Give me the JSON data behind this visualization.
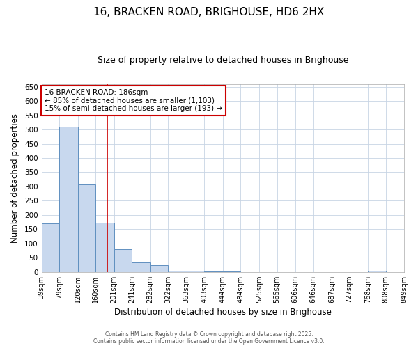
{
  "title1": "16, BRACKEN ROAD, BRIGHOUSE, HD6 2HX",
  "title2": "Size of property relative to detached houses in Brighouse",
  "xlabel": "Distribution of detached houses by size in Brighouse",
  "ylabel": "Number of detached properties",
  "bar_values": [
    170,
    510,
    307,
    173,
    81,
    33,
    23,
    5,
    5,
    2,
    2,
    0,
    0,
    0,
    0,
    0,
    0,
    0,
    5,
    0
  ],
  "bin_edges": [
    39,
    79,
    120,
    160,
    201,
    241,
    282,
    322,
    363,
    403,
    444,
    484,
    525,
    565,
    606,
    646,
    687,
    727,
    768,
    808,
    849
  ],
  "tick_labels": [
    "39sqm",
    "79sqm",
    "120sqm",
    "160sqm",
    "201sqm",
    "241sqm",
    "282sqm",
    "322sqm",
    "363sqm",
    "403sqm",
    "444sqm",
    "484sqm",
    "525sqm",
    "565sqm",
    "606sqm",
    "646sqm",
    "687sqm",
    "727sqm",
    "768sqm",
    "808sqm",
    "849sqm"
  ],
  "bar_color": "#c8d8ee",
  "bar_edge_color": "#6090c0",
  "red_line_x": 186,
  "annotation_line1": "16 BRACKEN ROAD: 186sqm",
  "annotation_line2": "← 85% of detached houses are smaller (1,103)",
  "annotation_line3": "15% of semi-detached houses are larger (193) →",
  "annotation_box_color": "#ffffff",
  "annotation_box_edge": "#cc0000",
  "ylim": [
    0,
    660
  ],
  "yticks": [
    0,
    50,
    100,
    150,
    200,
    250,
    300,
    350,
    400,
    450,
    500,
    550,
    600,
    650
  ],
  "footer1": "Contains HM Land Registry data © Crown copyright and database right 2025.",
  "footer2": "Contains public sector information licensed under the Open Government Licence v3.0.",
  "bg_color": "#ffffff",
  "plot_bg_color": "#ffffff",
  "grid_color": "#c8d4e4"
}
